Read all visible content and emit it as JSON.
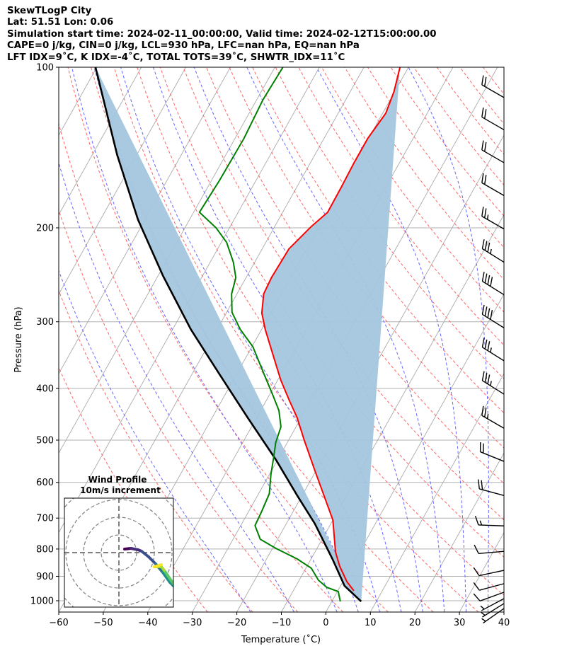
{
  "header": {
    "title": "SkewTLogP City",
    "location": "Lat: 51.51   Lon: 0.06",
    "times": "Simulation start time: 2024-02-11_00:00:00, Valid time: 2024-02-12T15:00:00.00",
    "indices1": "CAPE=0 j/kg, CIN=0 j/kg, LCL=930 hPa, LFC=nan hPa, EQ=nan hPa",
    "indices2": "LFT IDX=9˚C, K IDX=-4˚C, TOTAL TOTS=39˚C, SHWTR_IDX=11˚C"
  },
  "chart_data": {
    "type": "skewt",
    "xlabel": "Temperature (˚C)",
    "ylabel": "Pressure (hPa)",
    "xlim": [
      -60,
      40
    ],
    "ylim": [
      1050,
      100
    ],
    "xticks": [
      "−60",
      "−50",
      "−40",
      "−30",
      "−20",
      "−10",
      "0",
      "10",
      "20",
      "30",
      "40"
    ],
    "xtick_values": [
      -60,
      -50,
      -40,
      -30,
      -20,
      -10,
      0,
      10,
      20,
      30,
      40
    ],
    "yticks": [
      "100",
      "200",
      "300",
      "400",
      "500",
      "600",
      "700",
      "800",
      "900",
      "1000"
    ],
    "ytick_values": [
      100,
      200,
      300,
      400,
      500,
      600,
      700,
      800,
      900,
      1000
    ],
    "grid": true,
    "colors": {
      "temperature": "#ff0000",
      "dewpoint": "#008000",
      "parcel": "#000000",
      "shade": "#a3c6de",
      "dry_adiabat": "#ff6666",
      "moist_adiabat": "#6666ff",
      "isotherm": "#aaaaaa"
    },
    "temperature": {
      "pressure": [
        100,
        111,
        122,
        136,
        151,
        168,
        187,
        199,
        219,
        248,
        266,
        289,
        310,
        344,
        386,
        420,
        454,
        500,
        570,
        635,
        706,
        810,
        861,
        921,
        958
      ],
      "temp": [
        -51.9,
        -50.2,
        -49.3,
        -50.2,
        -50.2,
        -50.0,
        -49.9,
        -51.8,
        -54.0,
        -54.3,
        -54.0,
        -52.0,
        -49.2,
        -44.5,
        -39.3,
        -35.0,
        -30.9,
        -26.5,
        -20.3,
        -15.1,
        -10.0,
        -5.4,
        -2.7,
        0.9,
        3.6
      ]
    },
    "dewpoint": {
      "pressure": [
        100,
        115,
        136,
        163,
        187,
        200,
        213,
        232,
        248,
        266,
        288,
        310,
        334,
        377,
        411,
        440,
        472,
        505,
        541,
        579,
        630,
        678,
        723,
        767,
        798,
        835,
        869,
        915,
        944,
        961,
        1003
      ],
      "temp": [
        -78.2,
        -78.6,
        -78.0,
        -78.2,
        -78.7,
        -73.0,
        -68.8,
        -64.8,
        -62.3,
        -61.2,
        -58.8,
        -54.8,
        -49.8,
        -43.7,
        -39.3,
        -35.9,
        -33.4,
        -32.6,
        -31.1,
        -29.7,
        -27.6,
        -27.1,
        -26.8,
        -23.9,
        -19.2,
        -13.1,
        -8.8,
        -5.7,
        -2.9,
        0.2,
        1.9
      ]
    },
    "parcel": {
      "pressure": [
        1003,
        938,
        835,
        717,
        635,
        545,
        454,
        377,
        310,
        246,
        193,
        146,
        100
      ],
      "temp": [
        6.6,
        0.9,
        -5.2,
        -13.6,
        -21.1,
        -30.3,
        -42.0,
        -53.7,
        -65.9,
        -78.9,
        -91.6,
        -104.4,
        -120.3
      ]
    },
    "dry_adiabats_theta_c": [
      -30,
      -20,
      -10,
      0,
      10,
      20,
      30,
      40,
      50,
      60,
      70,
      80,
      90,
      100,
      110,
      120,
      130,
      140,
      150,
      160,
      170,
      180,
      190,
      200
    ],
    "moist_adiabats_t0_c": [
      -20,
      -10,
      0,
      5,
      10,
      15,
      20,
      25,
      30,
      35
    ],
    "wind_barbs": [
      {
        "pressure": 114,
        "speed_kt": 20,
        "direction_deg": 300
      },
      {
        "pressure": 131,
        "speed_kt": 20,
        "direction_deg": 300
      },
      {
        "pressure": 151,
        "speed_kt": 20,
        "direction_deg": 300
      },
      {
        "pressure": 174,
        "speed_kt": 20,
        "direction_deg": 300
      },
      {
        "pressure": 201,
        "speed_kt": 25,
        "direction_deg": 300
      },
      {
        "pressure": 232,
        "speed_kt": 35,
        "direction_deg": 302
      },
      {
        "pressure": 267,
        "speed_kt": 40,
        "direction_deg": 302
      },
      {
        "pressure": 308,
        "speed_kt": 40,
        "direction_deg": 302
      },
      {
        "pressure": 355,
        "speed_kt": 35,
        "direction_deg": 302
      },
      {
        "pressure": 410,
        "speed_kt": 35,
        "direction_deg": 302
      },
      {
        "pressure": 475,
        "speed_kt": 25,
        "direction_deg": 300
      },
      {
        "pressure": 548,
        "speed_kt": 20,
        "direction_deg": 292
      },
      {
        "pressure": 635,
        "speed_kt": 20,
        "direction_deg": 285
      },
      {
        "pressure": 724,
        "speed_kt": 15,
        "direction_deg": 272
      },
      {
        "pressure": 808,
        "speed_kt": 10,
        "direction_deg": 265
      },
      {
        "pressure": 877,
        "speed_kt": 10,
        "direction_deg": 258
      },
      {
        "pressure": 929,
        "speed_kt": 10,
        "direction_deg": 255
      },
      {
        "pressure": 964,
        "speed_kt": 10,
        "direction_deg": 250
      },
      {
        "pressure": 991,
        "speed_kt": 5,
        "direction_deg": 242
      },
      {
        "pressure": 1012,
        "speed_kt": 5,
        "direction_deg": 238
      },
      {
        "pressure": 1034,
        "speed_kt": 5,
        "direction_deg": 235
      }
    ],
    "hodograph": {
      "title": "Wind Profile",
      "subtitle": "10m/s increment",
      "ring_step_ms": 10,
      "u": [
        3.2,
        6.8,
        10.8,
        12.8,
        16.8,
        20.8,
        24.8,
        28.8,
        32,
        34,
        29,
        25.6,
        24,
        20,
        24
      ],
      "v": [
        2,
        2.4,
        1.6,
        0.8,
        -2.4,
        -6.4,
        -11.2,
        -16.8,
        -20,
        -22,
        -15,
        -10,
        -8,
        -8,
        -6.8
      ]
    }
  }
}
